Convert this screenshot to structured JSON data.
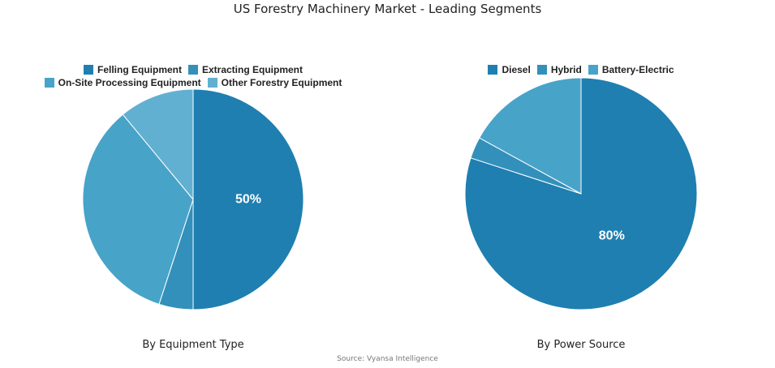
{
  "title": "US Forestry Machinery Market - Leading Segments",
  "source": "Source: Vyansa Intelligence",
  "chart_data": [
    {
      "type": "pie",
      "caption": "By Equipment Type",
      "legend_placement": "top",
      "start": "top, clockwise",
      "slices": [
        {
          "label": "Felling Equipment",
          "value": 50,
          "color": "#1f7fb0",
          "data_label": "50%"
        },
        {
          "label": "Extracting Equipment",
          "value": 5,
          "color": "#3390bb",
          "data_label": ""
        },
        {
          "label": "On-Site Processing Equipment",
          "value": 34,
          "color": "#48a3c9",
          "data_label": ""
        },
        {
          "label": "Other Forestry Equipment",
          "value": 11,
          "color": "#62b0d1",
          "data_label": ""
        }
      ]
    },
    {
      "type": "pie",
      "caption": "By Power Source",
      "legend_placement": "top",
      "start": "top, clockwise",
      "slices": [
        {
          "label": "Diesel",
          "value": 80,
          "color": "#1f7fb0",
          "data_label": "80%"
        },
        {
          "label": "Hybrid",
          "value": 3,
          "color": "#3390bb",
          "data_label": ""
        },
        {
          "label": "Battery-Electric",
          "value": 17,
          "color": "#48a3c9",
          "data_label": ""
        }
      ]
    }
  ]
}
